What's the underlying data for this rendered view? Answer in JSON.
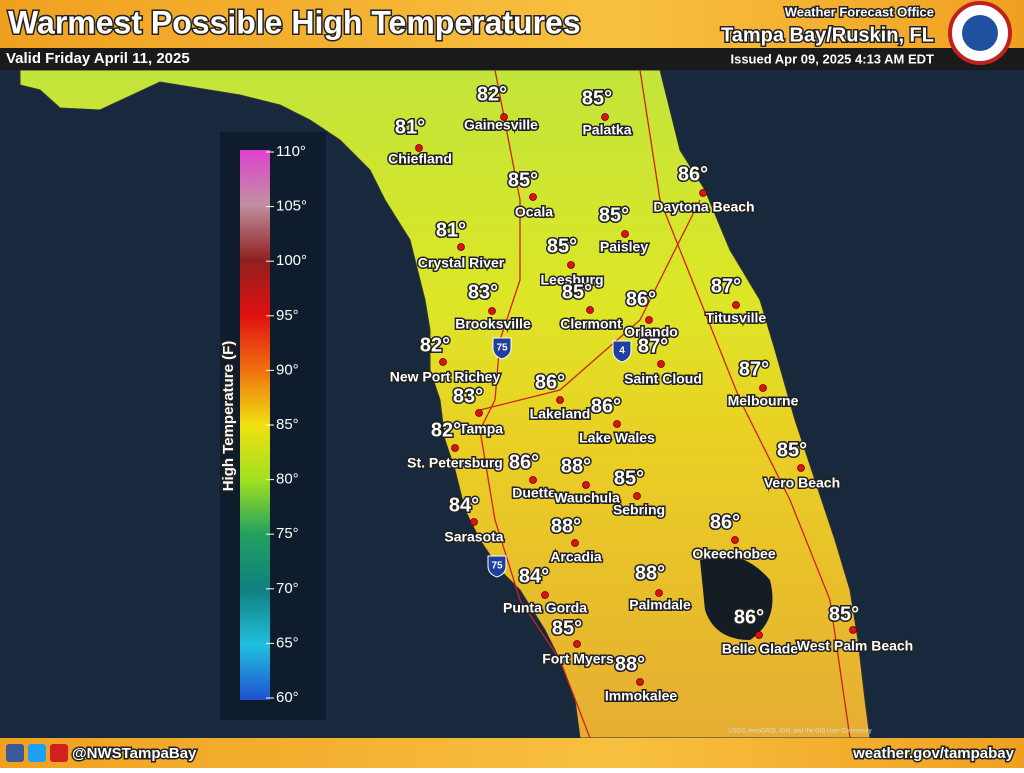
{
  "header": {
    "title": "Warmest Possible High Temperatures",
    "valid": "Valid Friday April 11, 2025",
    "office_label": "Weather Forecast Office",
    "office": "Tampa Bay/Ruskin, FL",
    "issued": "Issued Apr 09, 2025 4:13 AM EDT"
  },
  "legend": {
    "title": "High Temperature (F)",
    "ticks": [
      "110°",
      "105°",
      "100°",
      "95°",
      "90°",
      "85°",
      "80°",
      "75°",
      "70°",
      "65°",
      "60°"
    ]
  },
  "shields": [
    "75",
    "4",
    "75"
  ],
  "cities": [
    {
      "name": "Chiefland",
      "temp": "81°"
    },
    {
      "name": "Gainesville",
      "temp": "82°"
    },
    {
      "name": "Palatka",
      "temp": "85°"
    },
    {
      "name": "Ocala",
      "temp": "85°"
    },
    {
      "name": "Daytona Beach",
      "temp": "86°"
    },
    {
      "name": "Crystal River",
      "temp": "81°"
    },
    {
      "name": "Paisley",
      "temp": "85°"
    },
    {
      "name": "Leesburg",
      "temp": "85°"
    },
    {
      "name": "Clermont",
      "temp": "85°"
    },
    {
      "name": "Orlando",
      "temp": "86°"
    },
    {
      "name": "Titusville",
      "temp": "87°"
    },
    {
      "name": "Brooksville",
      "temp": "83°"
    },
    {
      "name": "New Port Richey",
      "temp": "82°"
    },
    {
      "name": "Saint Cloud",
      "temp": "87°"
    },
    {
      "name": "Melbourne",
      "temp": "87°"
    },
    {
      "name": "Lakeland",
      "temp": "86°"
    },
    {
      "name": "Tampa",
      "temp": "83°"
    },
    {
      "name": "Lake Wales",
      "temp": "86°"
    },
    {
      "name": "St. Petersburg",
      "temp": "82°"
    },
    {
      "name": "Vero Beach",
      "temp": "85°"
    },
    {
      "name": "Duette",
      "temp": "86°"
    },
    {
      "name": "Wauchula",
      "temp": "88°"
    },
    {
      "name": "Sebring",
      "temp": "85°"
    },
    {
      "name": "Sarasota",
      "temp": "84°"
    },
    {
      "name": "Arcadia",
      "temp": "88°"
    },
    {
      "name": "Okeechobee",
      "temp": "86°"
    },
    {
      "name": "Punta Gorda",
      "temp": "84°"
    },
    {
      "name": "Palmdale",
      "temp": "88°"
    },
    {
      "name": "Belle Glade",
      "temp": "86°"
    },
    {
      "name": "West Palm Beach",
      "temp": "85°"
    },
    {
      "name": "Fort Myers",
      "temp": "85°"
    },
    {
      "name": "Immokalee",
      "temp": "88°"
    }
  ],
  "attribution": "USGS, AeroGRID, IGN, and the GIS User Community",
  "footer": {
    "social": "@NWSTampaBay",
    "url": "weather.gov/tampabay"
  }
}
